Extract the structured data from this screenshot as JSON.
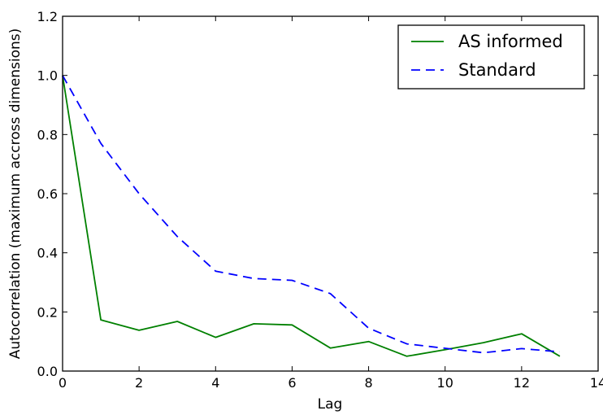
{
  "chart_data": {
    "type": "line",
    "xlabel": "Lag",
    "ylabel": "Autocorrelation (maximum accross dimensions)",
    "xlim": [
      0,
      14
    ],
    "ylim": [
      0,
      1.2
    ],
    "xticks": [
      "0",
      "2",
      "4",
      "6",
      "8",
      "10",
      "12",
      "14"
    ],
    "yticks": [
      "0.0",
      "0.2",
      "0.4",
      "0.6",
      "0.8",
      "1.0",
      "1.2"
    ],
    "grid": false,
    "legend_position": "top-right",
    "x": [
      0,
      1,
      2,
      3,
      4,
      5,
      6,
      7,
      8,
      9,
      10,
      11,
      12,
      13
    ],
    "series": [
      {
        "name": "AS informed",
        "color": "#008000",
        "style": "solid",
        "values": [
          1.0,
          0.173,
          0.138,
          0.168,
          0.114,
          0.16,
          0.156,
          0.078,
          0.1,
          0.05,
          0.072,
          0.096,
          0.126,
          0.05
        ]
      },
      {
        "name": "Standard",
        "color": "#0000ff",
        "style": "dashed",
        "values": [
          1.0,
          0.77,
          0.6,
          0.455,
          0.338,
          0.313,
          0.307,
          0.262,
          0.145,
          0.092,
          0.077,
          0.062,
          0.076,
          0.065
        ]
      }
    ]
  }
}
